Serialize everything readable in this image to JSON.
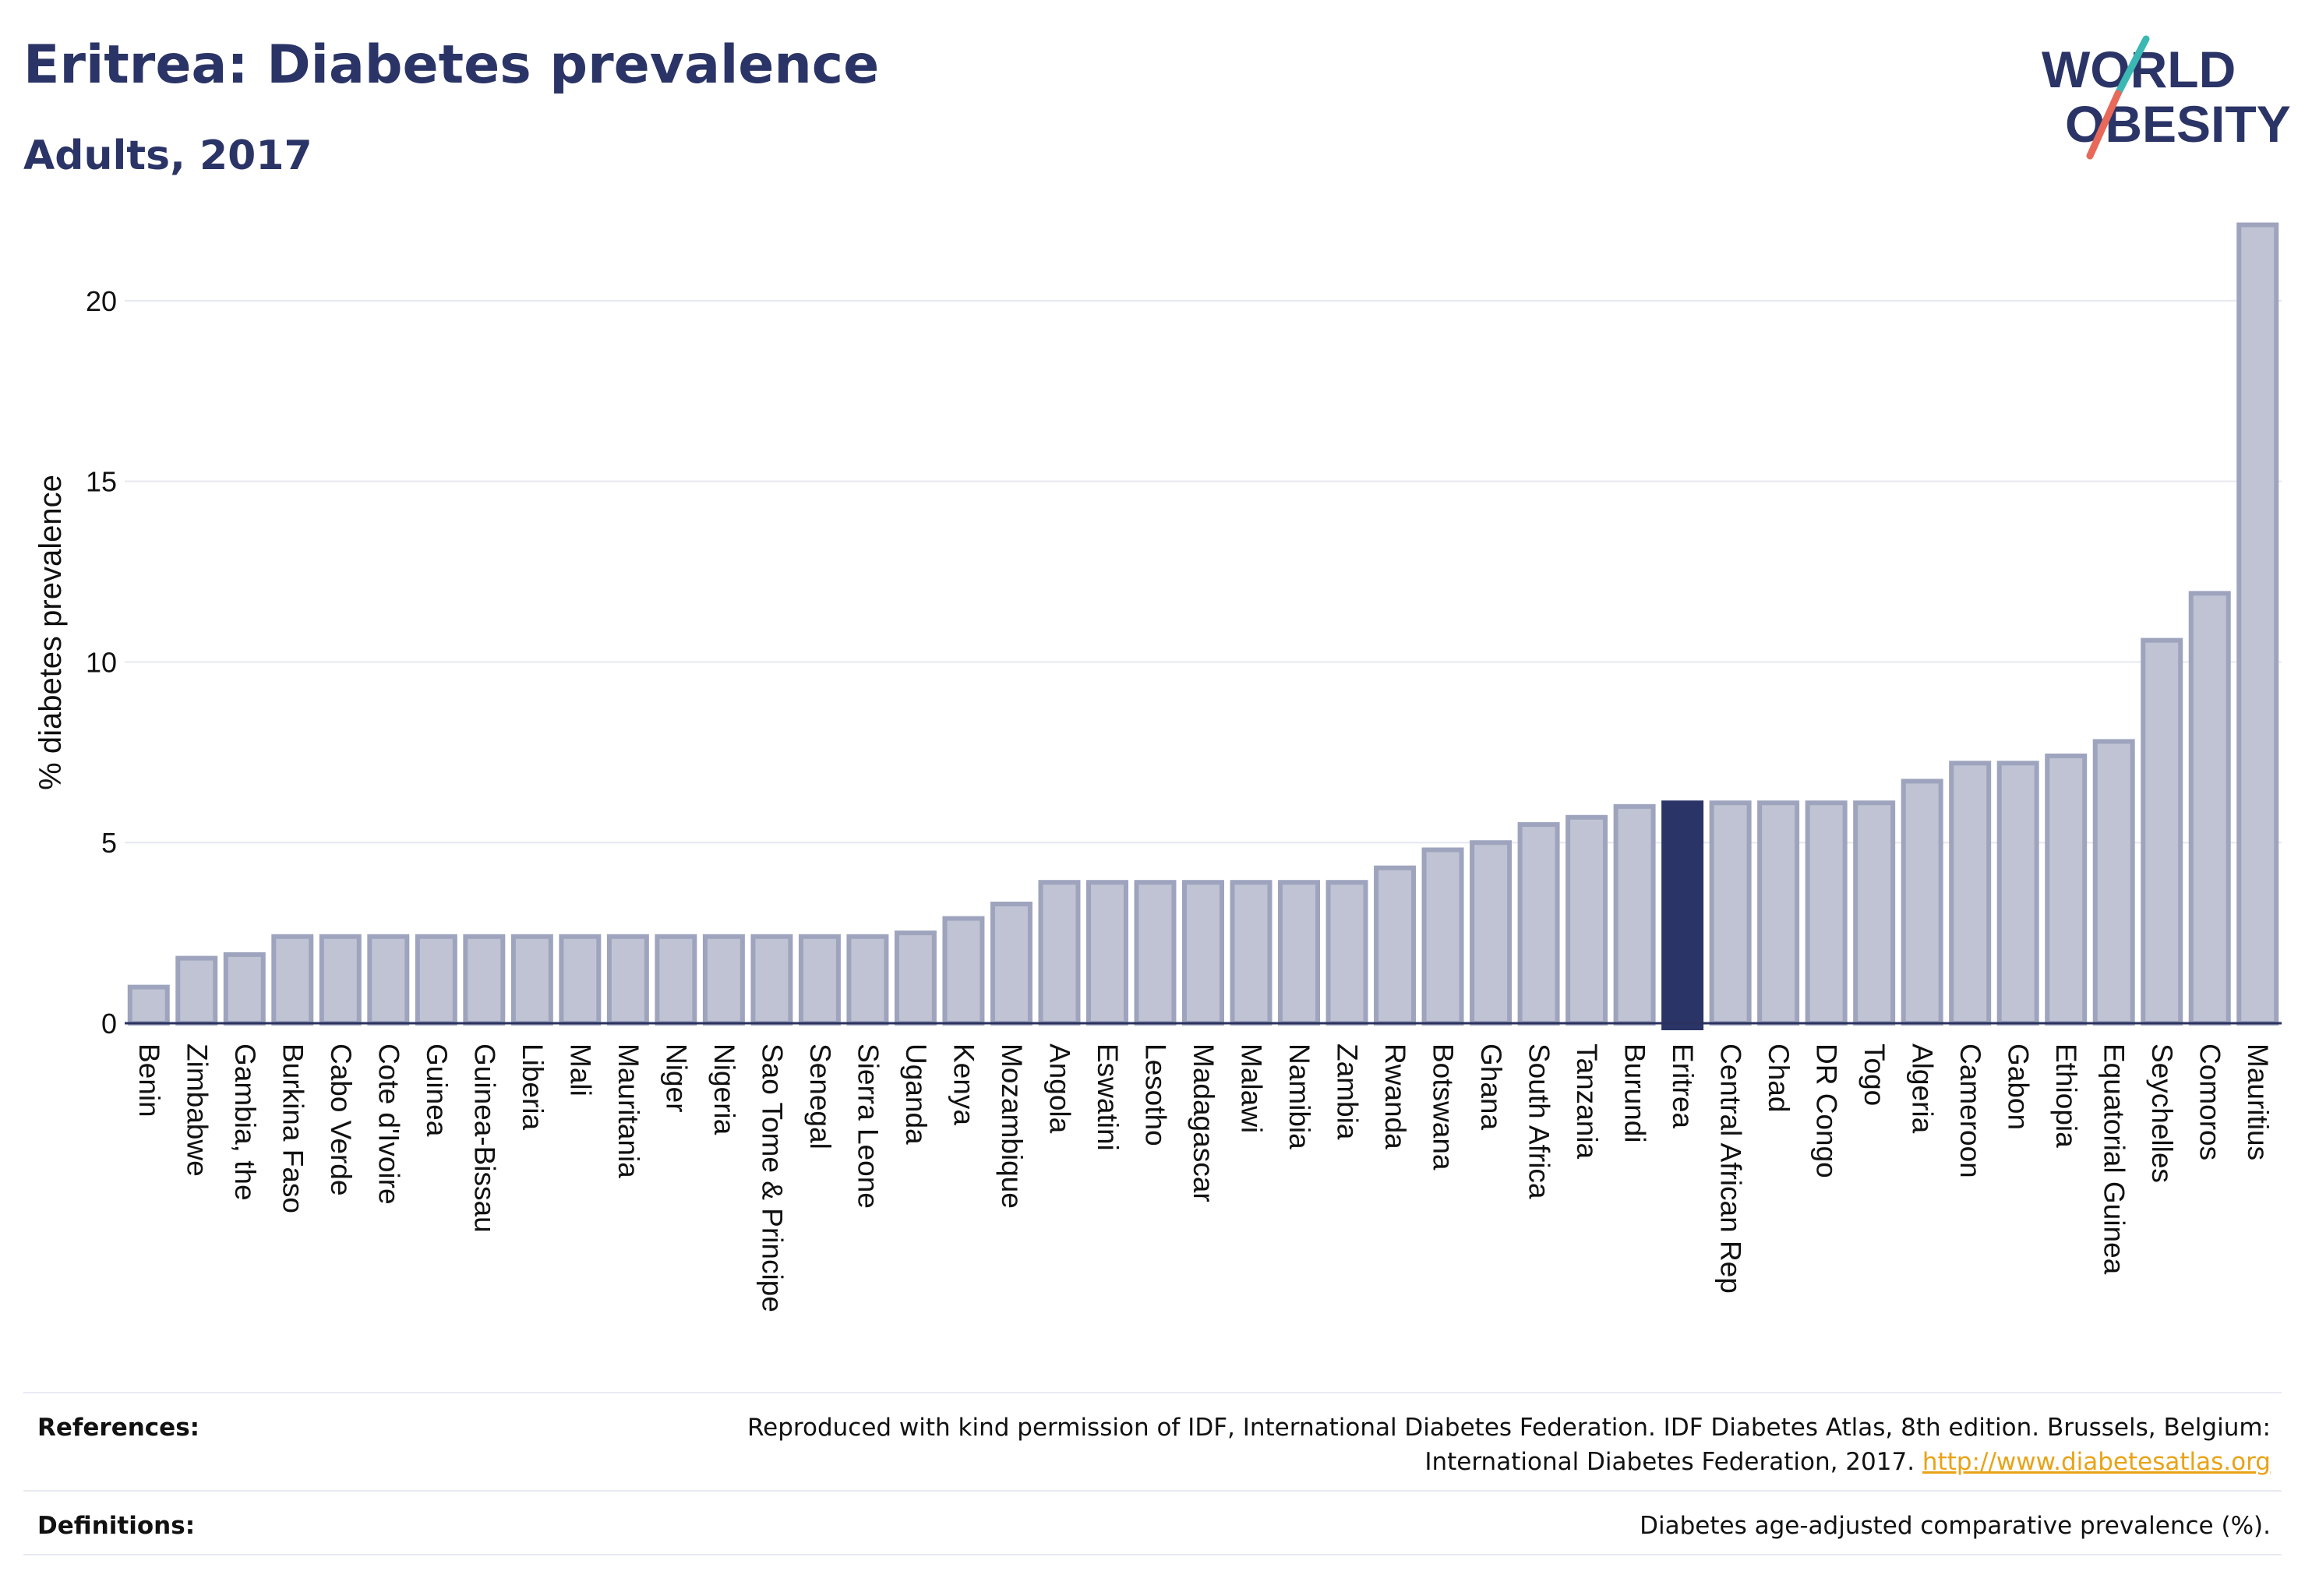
{
  "header": {
    "title": "Eritrea: Diabetes prevalence",
    "subtitle": "Adults, 2017"
  },
  "logo": {
    "line1": "WORLD",
    "line2": "OBESITY",
    "accent_teal": "#3bb8b3",
    "accent_red": "#e8695a"
  },
  "colors": {
    "bar": "#bfc3d3",
    "bar_edge": "#9ea4bd",
    "highlight": "#2b3466",
    "grid": "#e6e8ef",
    "axis": "#2a3260"
  },
  "chart_data": {
    "type": "bar",
    "title": "Eritrea: Diabetes prevalence",
    "subtitle": "Adults, 2017",
    "ylabel": "% diabetes prevalence",
    "xlabel": "",
    "ylim": [
      0,
      22.5
    ],
    "yticks": [
      0,
      5,
      10,
      15,
      20
    ],
    "grid": true,
    "highlight": "Eritrea",
    "categories": [
      "Benin",
      "Zimbabwe",
      "Gambia, the",
      "Burkina Faso",
      "Cabo Verde",
      "Cote d'Ivoire",
      "Guinea",
      "Guinea-Bissau",
      "Liberia",
      "Mali",
      "Mauritania",
      "Niger",
      "Nigeria",
      "Sao Tome & Principe",
      "Senegal",
      "Sierra Leone",
      "Uganda",
      "Kenya",
      "Mozambique",
      "Angola",
      "Eswatini",
      "Lesotho",
      "Madagascar",
      "Malawi",
      "Namibia",
      "Zambia",
      "Rwanda",
      "Botswana",
      "Ghana",
      "South Africa",
      "Tanzania",
      "Burundi",
      "Eritrea",
      "Central African Rep",
      "Chad",
      "DR Congo",
      "Togo",
      "Algeria",
      "Cameroon",
      "Gabon",
      "Ethiopia",
      "Equatorial Guinea",
      "Seychelles",
      "Comoros",
      "Mauritius"
    ],
    "values": [
      1.0,
      1.8,
      1.9,
      2.4,
      2.4,
      2.4,
      2.4,
      2.4,
      2.4,
      2.4,
      2.4,
      2.4,
      2.4,
      2.4,
      2.4,
      2.4,
      2.5,
      2.9,
      3.3,
      3.9,
      3.9,
      3.9,
      3.9,
      3.9,
      3.9,
      3.9,
      4.3,
      4.8,
      5.0,
      5.5,
      5.7,
      6.0,
      6.1,
      6.1,
      6.1,
      6.1,
      6.1,
      6.7,
      7.2,
      7.2,
      7.4,
      7.8,
      10.6,
      11.9,
      22.1
    ]
  },
  "references": {
    "label": "References:",
    "line1": "Reproduced with kind permission of IDF, International Diabetes Federation. IDF Diabetes Atlas, 8th edition. Brussels, Belgium:",
    "line2": "International Diabetes Federation, 2017.",
    "link": "http://www.diabetesatlas.org"
  },
  "definitions": {
    "label": "Definitions:",
    "text": "Diabetes age-adjusted comparative prevalence (%)."
  }
}
